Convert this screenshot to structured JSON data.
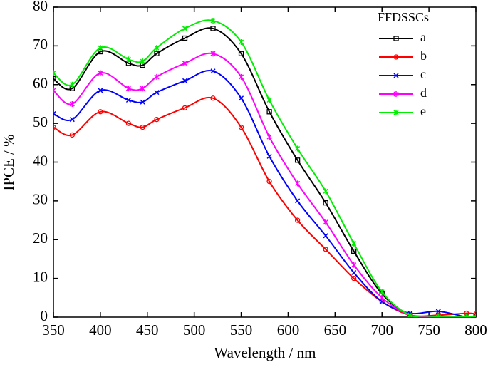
{
  "chart_data": {
    "type": "line",
    "x_label": "Wavelength / nm",
    "y_label": "IPCE / %",
    "legend_title": "FFDSSCs",
    "legend_position": "upper right",
    "x": [
      350,
      370,
      400,
      430,
      445,
      460,
      490,
      520,
      550,
      580,
      610,
      640,
      670,
      700,
      730,
      760,
      790,
      800
    ],
    "series": [
      {
        "name": "a",
        "color": "#000000",
        "marker": "square",
        "values": [
          61.5,
          59,
          68.5,
          65.5,
          65,
          68,
          72,
          74.5,
          68,
          53,
          40.5,
          29.5,
          17,
          6,
          0.5,
          0,
          0,
          0
        ]
      },
      {
        "name": "b",
        "color": "#ff0000",
        "marker": "circle",
        "values": [
          49,
          47,
          53,
          50,
          49,
          51,
          54,
          56.5,
          49,
          35,
          25,
          17.5,
          10,
          4,
          0.5,
          0.5,
          1,
          0.8
        ]
      },
      {
        "name": "c",
        "color": "#0000ff",
        "marker": "cross",
        "values": [
          52.5,
          51,
          58.5,
          56,
          55.5,
          58,
          61,
          63.5,
          56.5,
          41.5,
          30,
          21,
          11.5,
          4,
          1,
          1.5,
          0,
          0
        ]
      },
      {
        "name": "d",
        "color": "#ff00ff",
        "marker": "star",
        "values": [
          58.5,
          55,
          63,
          59,
          59,
          62,
          65.5,
          68,
          62,
          46.5,
          34.5,
          24.5,
          13.5,
          5,
          0.5,
          0,
          0,
          0
        ]
      },
      {
        "name": "e",
        "color": "#00ee00",
        "marker": "star",
        "values": [
          63,
          60,
          69.5,
          66.5,
          66,
          69.5,
          74.5,
          76.5,
          71,
          56,
          43.5,
          32.5,
          19,
          6.5,
          0.5,
          0,
          0,
          0
        ]
      }
    ],
    "xlim": [
      350,
      800
    ],
    "xticks": [
      350,
      400,
      450,
      500,
      550,
      600,
      650,
      700,
      750,
      800
    ],
    "ylim": [
      0,
      80
    ],
    "yticks": [
      0,
      10,
      20,
      30,
      40,
      50,
      60,
      70,
      80
    ]
  }
}
